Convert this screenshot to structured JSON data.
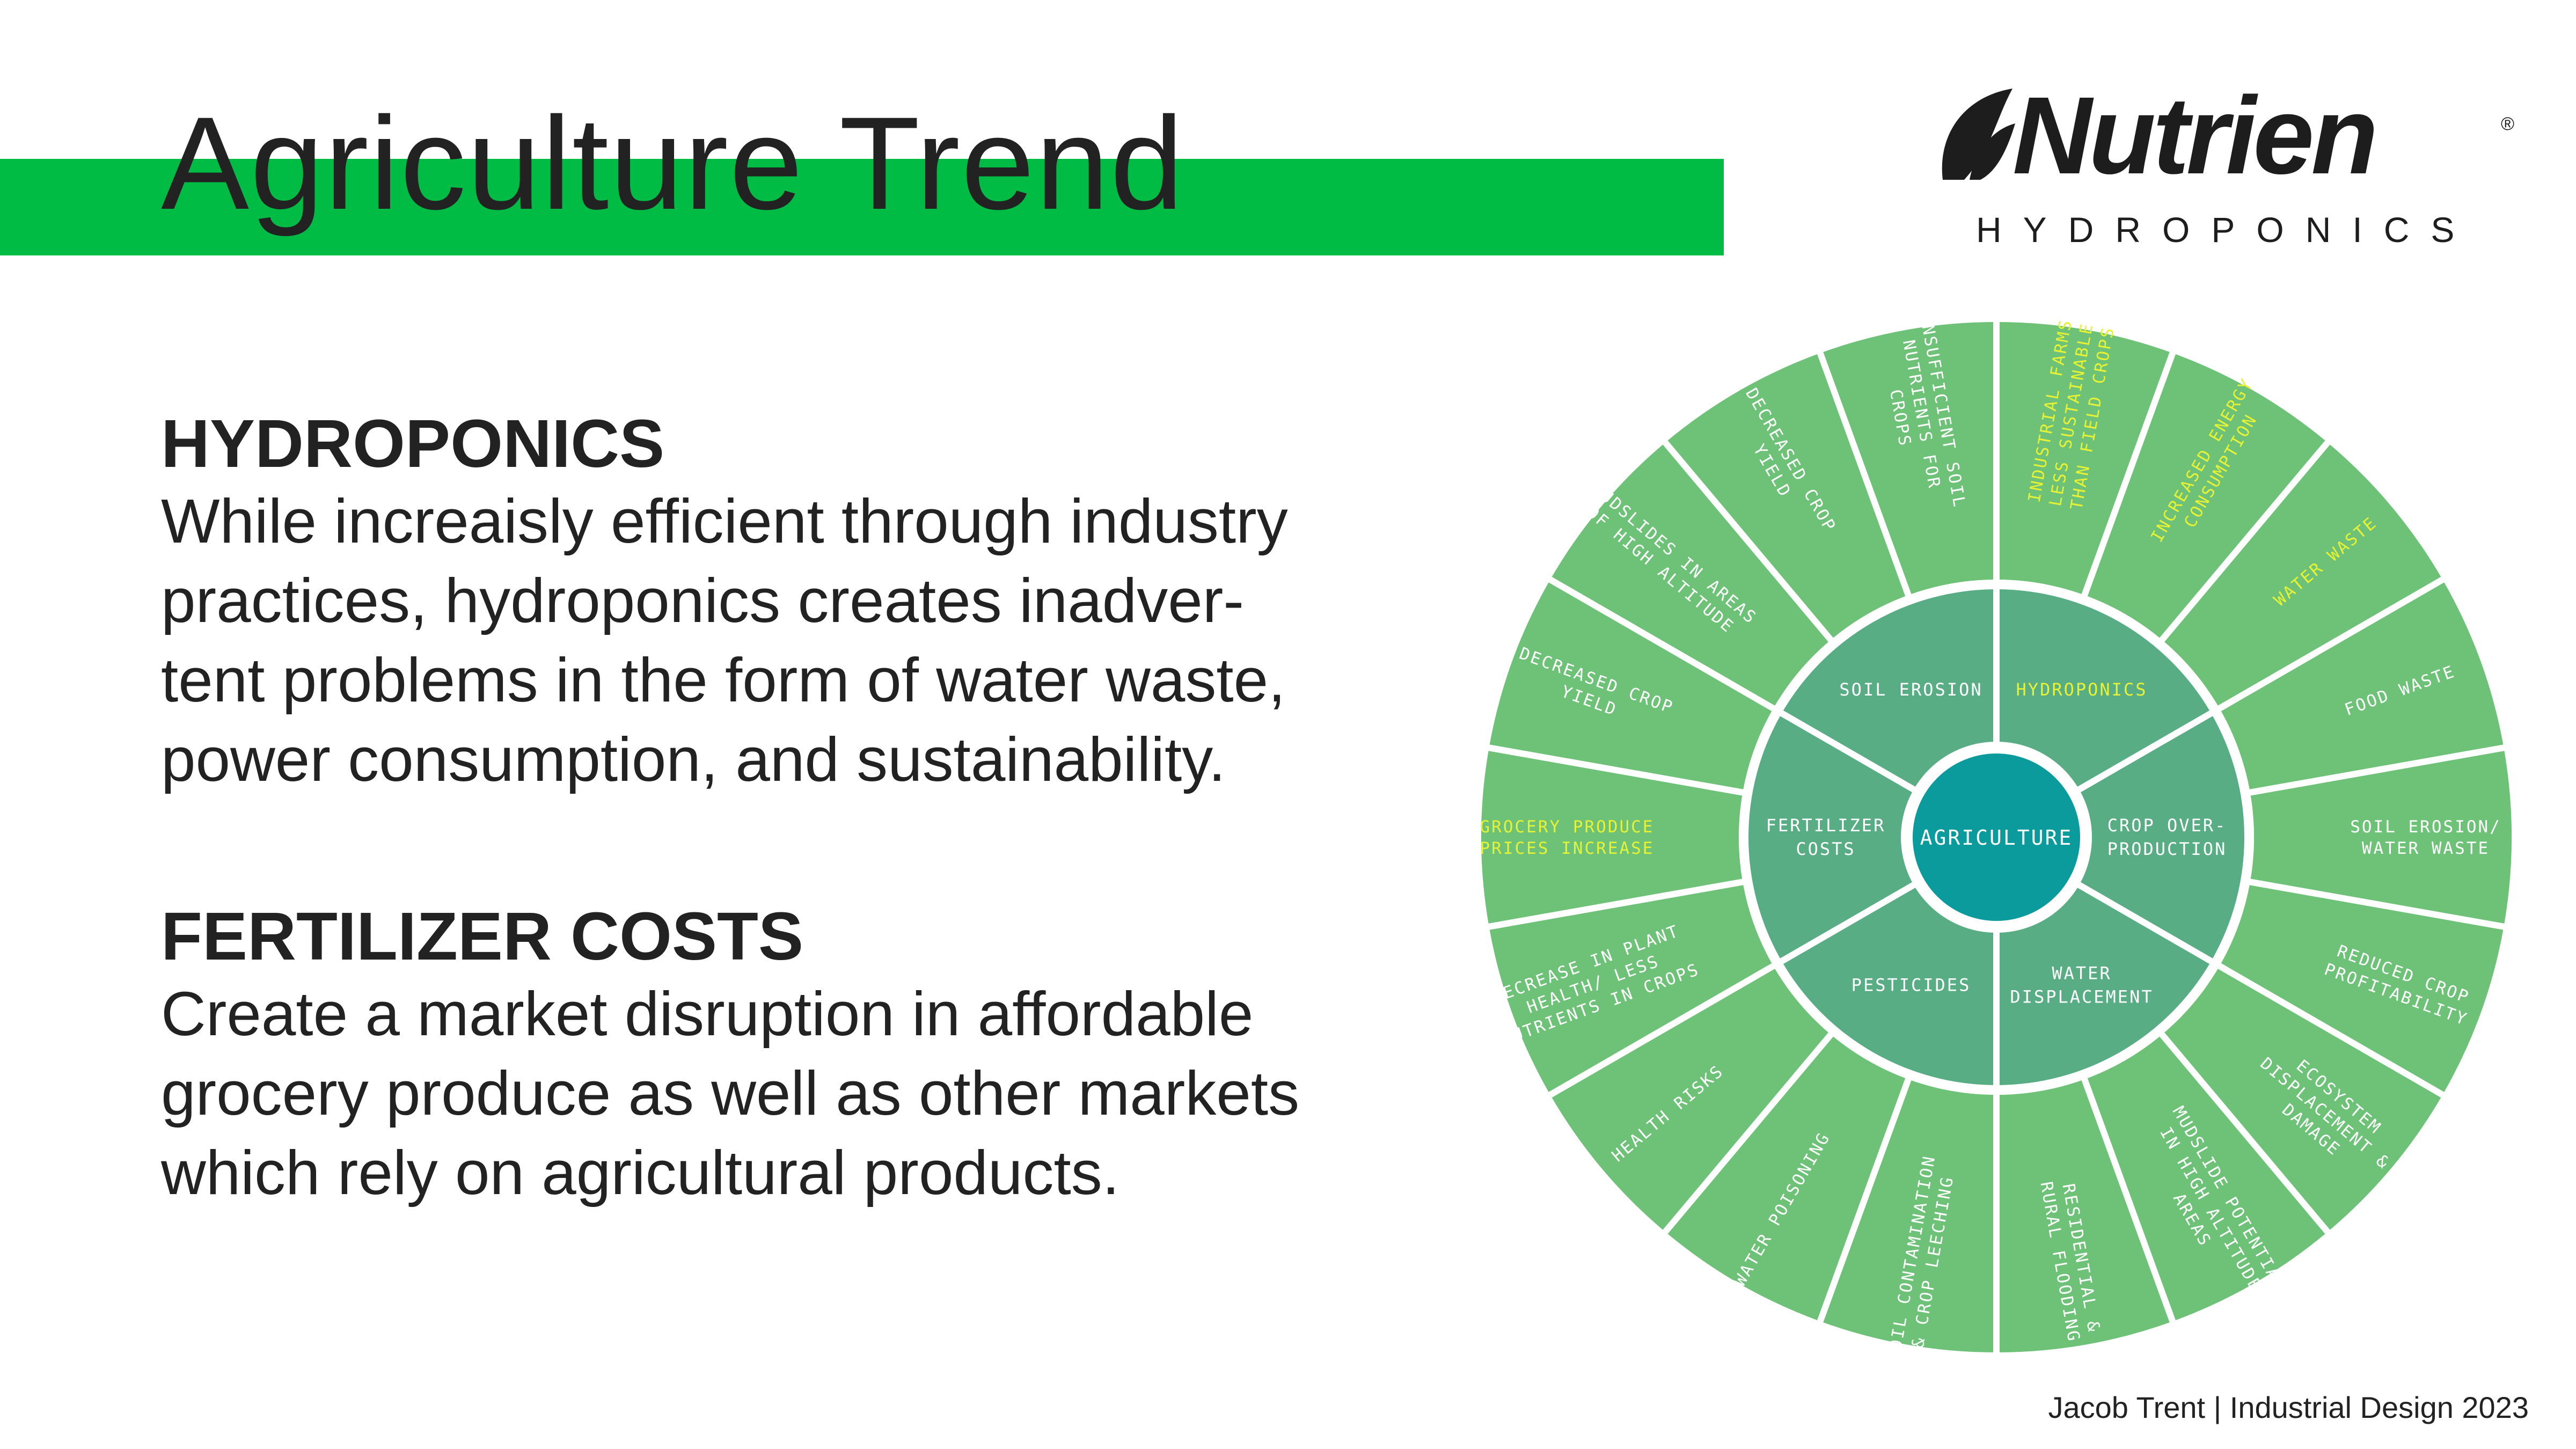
{
  "page": {
    "title": "Agriculture Trend",
    "footer": "Jacob Trent | Industrial Design 2023"
  },
  "logo": {
    "brand": "Nutrien",
    "registered": "®",
    "sub": "HYDROPONICS"
  },
  "sections": [
    {
      "heading": "HYDROPONICS",
      "lines": [
        "While increaisly efficient through industry",
        "practices, hydroponics creates inadver-",
        "tent problems in the form of water waste,",
        "power consumption, and sustainability."
      ]
    },
    {
      "heading": "FERTILIZER COSTS",
      "lines": [
        "Create a market disruption in affordable",
        "grocery produce as well as other markets",
        "which rely on agricultural products."
      ]
    }
  ],
  "colors": {
    "accent_green": "#00bb44",
    "outer_ring": "#6dc278",
    "middle_ring": "#58ad85",
    "center": "#0c9b9c",
    "highlight_text": "#e6f233"
  },
  "diagram": {
    "center": "AGRICULTURE",
    "middle": [
      {
        "label": [
          "HYDROPONICS"
        ],
        "highlight": true
      },
      {
        "label": [
          "CROP OVER-",
          "PRODUCTION"
        ],
        "highlight": false
      },
      {
        "label": [
          "WATER",
          "DISPLACEMENT"
        ],
        "highlight": false
      },
      {
        "label": [
          "PESTICIDES"
        ],
        "highlight": false
      },
      {
        "label": [
          "FERTILIZER",
          "COSTS"
        ],
        "highlight": false
      },
      {
        "label": [
          "SOIL EROSION"
        ],
        "highlight": false
      }
    ],
    "outer": [
      {
        "label": [
          "INDUSTRIAL FARMS",
          "LESS SUSTAINABLE",
          "THAN FIELD CROPS"
        ],
        "highlight": true
      },
      {
        "label": [
          "INCREASED ENERGY",
          "CONSUMPTION"
        ],
        "highlight": true
      },
      {
        "label": [
          "WATER WASTE"
        ],
        "highlight": true
      },
      {
        "label": [
          "FOOD WASTE"
        ],
        "highlight": false
      },
      {
        "label": [
          "SOIL EROSION/",
          "WATER WASTE"
        ],
        "highlight": false
      },
      {
        "label": [
          "REDUCED CROP",
          "PROFITABILITY"
        ],
        "highlight": false
      },
      {
        "label": [
          "ECOSYSTEM",
          "DISPLACEMENT &",
          "DAMAGE"
        ],
        "highlight": false
      },
      {
        "label": [
          "MUDSLIDE POTENTIAL",
          "IN HIGH ALTITUDE",
          "AREAS"
        ],
        "highlight": false
      },
      {
        "label": [
          "RESIDENTIAL &",
          "RURAL FLOODING"
        ],
        "highlight": false
      },
      {
        "label": [
          "SOIL CONTAMINATION",
          "& CROP LEECHING"
        ],
        "highlight": false
      },
      {
        "label": [
          "WATER POISONING"
        ],
        "highlight": false
      },
      {
        "label": [
          "HEALTH RISKS"
        ],
        "highlight": false
      },
      {
        "label": [
          "DECREASE IN PLANT",
          "HEALTH/ LESS",
          "NUTRIENTS IN CROPS"
        ],
        "highlight": false
      },
      {
        "label": [
          "GROCERY PRODUCE",
          "PRICES INCREASE"
        ],
        "highlight": true
      },
      {
        "label": [
          "DECREASED CROP",
          "YIELD"
        ],
        "highlight": false
      },
      {
        "label": [
          "MUDSLIDES IN AREAS",
          "OF HIGH ALTITUDE"
        ],
        "highlight": false
      },
      {
        "label": [
          "DECREASED CROP",
          "YIELD"
        ],
        "highlight": false
      },
      {
        "label": [
          "INSUFFICIENT SOIL",
          "NUTRIENTS FOR",
          "CROPS"
        ],
        "highlight": false
      }
    ]
  }
}
